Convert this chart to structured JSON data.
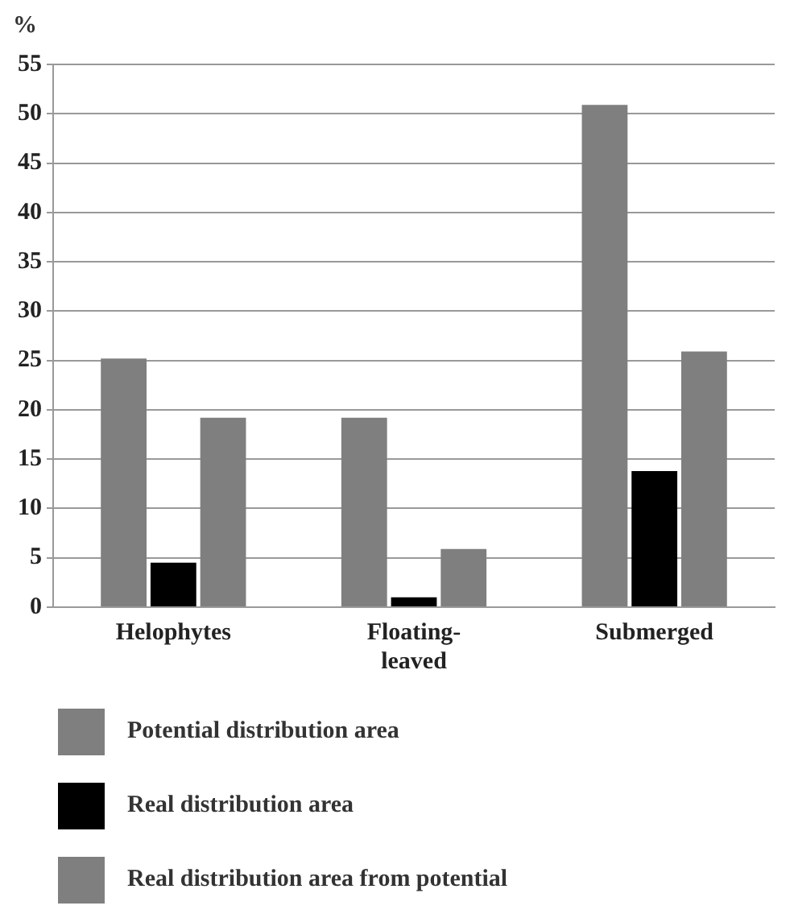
{
  "chart_data": {
    "type": "bar",
    "ylabel": "%",
    "categories": [
      "Helophytes",
      "Floating-leaved",
      "Submerged"
    ],
    "series": [
      {
        "name": "Potential distribution area",
        "color": "#7f7f7f",
        "values": [
          25.2,
          19.2,
          50.9
        ]
      },
      {
        "name": "Real distribution area",
        "color": "#000000",
        "values": [
          4.5,
          1.0,
          13.8
        ]
      },
      {
        "name": "Real distribution area from potential",
        "color": "#7f7f7f",
        "values": [
          19.2,
          5.9,
          25.9
        ]
      }
    ],
    "ylim": [
      0,
      55
    ],
    "yticks": [
      0,
      5,
      10,
      15,
      20,
      25,
      30,
      35,
      40,
      45,
      50,
      55
    ],
    "grid": "y",
    "legend": "bottom"
  }
}
